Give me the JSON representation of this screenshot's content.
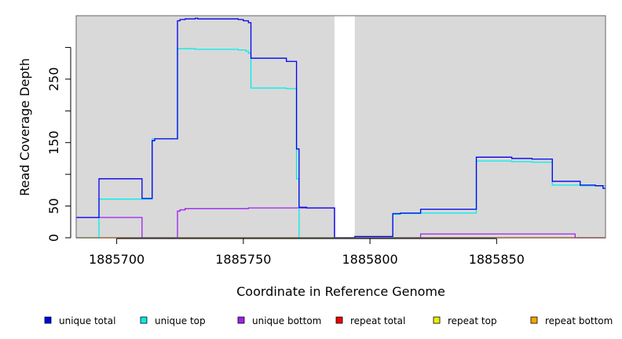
{
  "chart_data": {
    "type": "line",
    "title": "",
    "xlabel": "Coordinate in Reference Genome",
    "ylabel": "Read Coverage Depth",
    "xlim": [
      1885684,
      1885893
    ],
    "ylim": [
      0,
      350
    ],
    "x_ticks": [
      1885700,
      1885750,
      1885800,
      1885850
    ],
    "x_tick_labels": [
      "1885700",
      "1885750",
      "1885800",
      "1885850"
    ],
    "y_ticks": [
      0,
      50,
      100,
      150,
      200,
      250,
      300
    ],
    "y_tick_labels": [
      "0",
      "50",
      "",
      "150",
      "",
      "250",
      ""
    ],
    "background": "#d9d9d9",
    "gap": [
      1885786,
      1885794
    ],
    "grid": false,
    "legend_position": "bottom",
    "series": [
      {
        "name": "unique total",
        "color": "#0000ee",
        "x": [
          1885684,
          1885693,
          1885693,
          1885710,
          1885710,
          1885714,
          1885714,
          1885715,
          1885715,
          1885724,
          1885724,
          1885725,
          1885725,
          1885727,
          1885727,
          1885731,
          1885731,
          1885732,
          1885732,
          1885748,
          1885748,
          1885750,
          1885750,
          1885752,
          1885752,
          1885753,
          1885753,
          1885767,
          1885767,
          1885771,
          1885771,
          1885772,
          1885772,
          1885775,
          1885775,
          1885786,
          1885786,
          1885794,
          1885794,
          1885809,
          1885809,
          1885812,
          1885812,
          1885820,
          1885820,
          1885842,
          1885842,
          1885856,
          1885856,
          1885864,
          1885864,
          1885872,
          1885872,
          1885883,
          1885883,
          1885889,
          1885889,
          1885892,
          1885892,
          1885893
        ],
        "y": [
          32,
          32,
          93,
          93,
          62,
          62,
          153,
          153,
          156,
          156,
          342,
          342,
          344,
          344,
          345,
          345,
          346,
          346,
          345,
          345,
          344,
          344,
          342,
          342,
          339,
          339,
          283,
          283,
          278,
          278,
          140,
          140,
          48,
          48,
          47,
          47,
          0,
          0,
          2,
          2,
          38,
          38,
          39,
          39,
          45,
          45,
          127,
          127,
          125,
          125,
          124,
          124,
          89,
          89,
          83,
          83,
          82,
          82,
          78,
          78
        ]
      },
      {
        "name": "unique top",
        "color": "#00eeee",
        "x": [
          1885684,
          1885693,
          1885693,
          1885714,
          1885714,
          1885724,
          1885724,
          1885731,
          1885731,
          1885748,
          1885748,
          1885751,
          1885751,
          1885752,
          1885752,
          1885753,
          1885753,
          1885767,
          1885767,
          1885771,
          1885771,
          1885772,
          1885772,
          1885786,
          1885786,
          1885794,
          1885794,
          1885809,
          1885809,
          1885812,
          1885812,
          1885820,
          1885820,
          1885842,
          1885842,
          1885856,
          1885856,
          1885864,
          1885864,
          1885872,
          1885872,
          1885883,
          1885883,
          1885893
        ],
        "y": [
          0,
          0,
          61,
          61,
          156,
          156,
          298,
          298,
          297,
          297,
          296,
          296,
          294,
          294,
          291,
          291,
          236,
          236,
          235,
          235,
          93,
          93,
          0,
          0,
          0,
          0,
          0,
          0,
          37,
          37,
          38,
          38,
          39,
          39,
          121,
          121,
          120,
          120,
          119,
          119,
          83,
          83,
          82,
          82
        ]
      },
      {
        "name": "unique bottom",
        "color": "#a020f0",
        "x": [
          1885684,
          1885710,
          1885710,
          1885724,
          1885724,
          1885725,
          1885725,
          1885727,
          1885727,
          1885752,
          1885752,
          1885771,
          1885771,
          1885772,
          1885772,
          1885786,
          1885786,
          1885794,
          1885794,
          1885820,
          1885820,
          1885881,
          1885881,
          1885893
        ],
        "y": [
          32,
          32,
          0,
          0,
          42,
          42,
          44,
          44,
          46,
          46,
          47,
          47,
          47,
          47,
          47,
          47,
          0,
          0,
          0,
          0,
          6,
          6,
          0,
          0
        ]
      },
      {
        "name": "repeat total",
        "color": "#ee0000",
        "x": [
          1885684,
          1885893
        ],
        "y": [
          0,
          0
        ]
      },
      {
        "name": "repeat top",
        "color": "#eeee00",
        "x": [
          1885684,
          1885893
        ],
        "y": [
          0,
          0
        ]
      },
      {
        "name": "repeat bottom",
        "color": "#ffa500",
        "x": [
          1885684,
          1885893
        ],
        "y": [
          0,
          0
        ]
      }
    ]
  }
}
